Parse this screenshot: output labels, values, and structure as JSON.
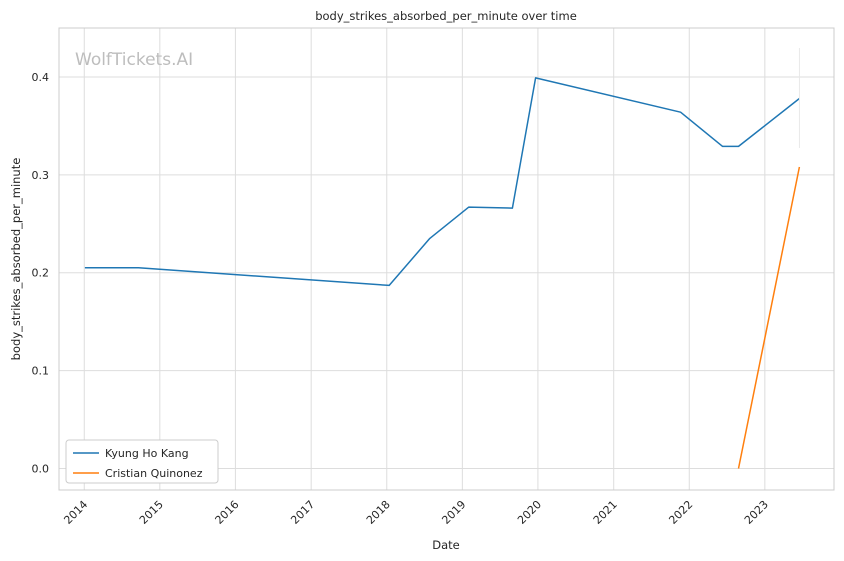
{
  "chart_data": {
    "type": "line",
    "title": "body_strikes_absorbed_per_minute over time",
    "xlabel": "Date",
    "ylabel": "body_strikes_absorbed_per_minute",
    "watermark": "WolfTickets.AI",
    "x_ticks": [
      "2014",
      "2015",
      "2016",
      "2017",
      "2018",
      "2019",
      "2020",
      "2021",
      "2022",
      "2023"
    ],
    "y_ticks": [
      "0.0",
      "0.1",
      "0.2",
      "0.3",
      "0.4"
    ],
    "xlim": [
      "2013-09-01",
      "2023-12-01"
    ],
    "ylim": [
      -0.022,
      0.45
    ],
    "grid": true,
    "legend_position": "lower-left",
    "series": [
      {
        "name": "Kyung Ho Kang",
        "color": "#1f77b4",
        "x": [
          "2014-01-04",
          "2014-09-20",
          "2018-01-13",
          "2018-07-28",
          "2019-02-01",
          "2019-08-31",
          "2019-12-21",
          "2021-11-20",
          "2022-06-11",
          "2022-08-27",
          "2023-06-17"
        ],
        "y": [
          0.205,
          0.205,
          0.187,
          0.235,
          0.267,
          0.266,
          0.399,
          0.364,
          0.329,
          0.329,
          0.378
        ]
      },
      {
        "name": "Cristian Quinonez",
        "color": "#ff7f0e",
        "x": [
          "2022-08-27",
          "2023-06-17"
        ],
        "y": [
          0.0,
          0.308
        ]
      }
    ]
  }
}
